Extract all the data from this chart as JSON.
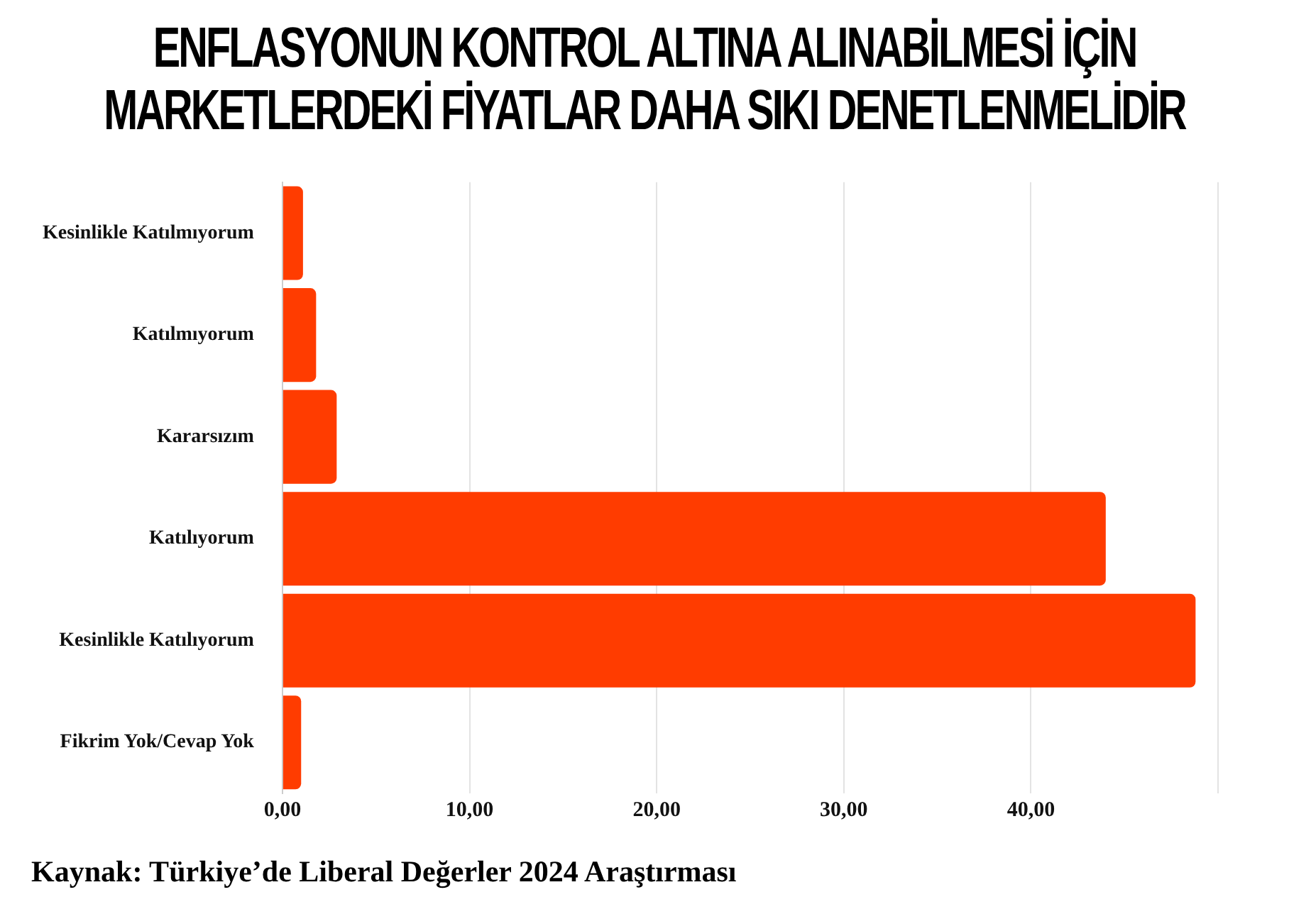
{
  "chart_data": {
    "type": "bar",
    "orientation": "horizontal",
    "title": "ENFLASYONUN KONTROL ALTINA ALINABİLMESİ İÇİN MARKETLERDEKİ FİYATLAR DAHA SIKI DENETLENMELİDİR",
    "categories": [
      "Kesinlikle Katılmıyorum",
      "Katılmıyorum",
      "Kararsızım",
      "Katılıyorum",
      "Kesinlikle Katılıyorum",
      "Fikrim Yok/Cevap Yok"
    ],
    "values": [
      1.1,
      1.8,
      2.9,
      44.0,
      48.8,
      1.0
    ],
    "color": "#ff3c00",
    "xlim": [
      0,
      50
    ],
    "xticks": [
      {
        "value": 0,
        "label": "0,00"
      },
      {
        "value": 10,
        "label": "10,00"
      },
      {
        "value": 20,
        "label": "20,00"
      },
      {
        "value": 30,
        "label": "30,00"
      },
      {
        "value": 40,
        "label": "40,00"
      },
      {
        "value": 50,
        "label": null
      }
    ],
    "grid": "x",
    "legend": false,
    "annotations": [
      "Kaynak: Türkiye’de Liberal Değerler 2024 Araştırması"
    ]
  }
}
